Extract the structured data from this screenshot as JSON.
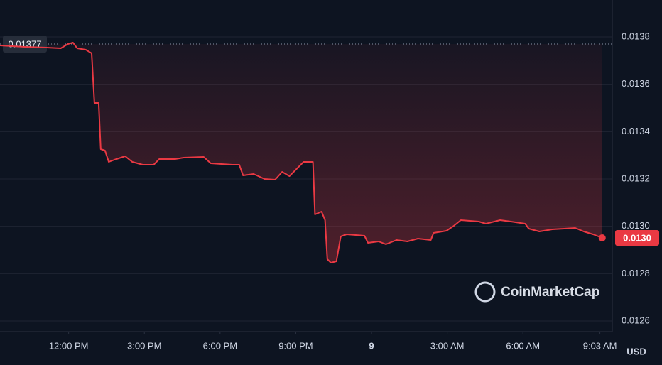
{
  "chart_data": {
    "type": "line",
    "currency": "USD",
    "watermark": "CoinMarketCap",
    "reference": {
      "value": 0.01377
    },
    "last_label": "0.0130",
    "grid": true,
    "x": [
      9.28,
      10.27,
      11.12,
      11.69,
      11.97,
      12.17,
      12.34,
      12.68,
      12.91,
      13.02,
      13.19,
      13.27,
      13.44,
      13.59,
      13.81,
      14.24,
      14.52,
      14.94,
      15.37,
      15.59,
      16.22,
      16.56,
      17.35,
      17.63,
      18.48,
      18.76,
      18.91,
      19.33,
      19.76,
      20.18,
      20.46,
      20.75,
      21.31,
      21.68,
      21.76,
      22.02,
      22.16,
      22.25,
      22.39,
      22.61,
      22.78,
      23.01,
      23.72,
      23.86,
      24.28,
      24.57,
      24.99,
      25.42,
      25.84,
      26.35,
      26.46,
      26.97,
      27.26,
      27.54,
      28.25,
      28.53,
      29.1,
      29.52,
      30.09,
      30.23,
      30.65,
      31.16,
      31.64,
      32.07,
      32.41,
      32.78,
      33.14
    ],
    "series": [
      {
        "color": "#ea3943",
        "values": [
          0.013764,
          0.013758,
          0.013755,
          0.013752,
          0.01377,
          0.013776,
          0.013752,
          0.013746,
          0.013731,
          0.013521,
          0.013521,
          0.013326,
          0.01332,
          0.013272,
          0.013281,
          0.013296,
          0.013272,
          0.01326,
          0.01326,
          0.013284,
          0.013284,
          0.01329,
          0.013293,
          0.013266,
          0.01326,
          0.01326,
          0.013215,
          0.013221,
          0.0132,
          0.013197,
          0.01323,
          0.013212,
          0.013272,
          0.013272,
          0.01305,
          0.013062,
          0.013026,
          0.012861,
          0.012846,
          0.012852,
          0.012957,
          0.012966,
          0.01296,
          0.01293,
          0.012936,
          0.012924,
          0.012942,
          0.012936,
          0.012948,
          0.012942,
          0.012972,
          0.012981,
          0.013002,
          0.013026,
          0.01302,
          0.013011,
          0.013026,
          0.01302,
          0.013011,
          0.01299,
          0.012978,
          0.012987,
          0.01299,
          0.012993,
          0.012978,
          0.012966,
          0.012951
        ]
      }
    ],
    "xlim": [
      9.28,
      33.54
    ],
    "xticks": [
      {
        "value": 12,
        "label": "12:00 PM"
      },
      {
        "value": 15,
        "label": "3:00 PM"
      },
      {
        "value": 18,
        "label": "6:00 PM"
      },
      {
        "value": 21,
        "label": "9:00 PM"
      },
      {
        "value": 24,
        "label": "9"
      },
      {
        "value": 27,
        "label": "3:00 AM"
      },
      {
        "value": 30,
        "label": "6:00 AM"
      },
      {
        "value": 33.05,
        "label": "9:03 AM"
      }
    ],
    "ylim": [
      0.012555,
      0.013941
    ],
    "yticks": [
      0.0126,
      0.0128,
      {
        "value": 0.013,
        "label": "0.0130"
      },
      0.0132,
      0.0134,
      0.0136,
      0.0138
    ]
  }
}
